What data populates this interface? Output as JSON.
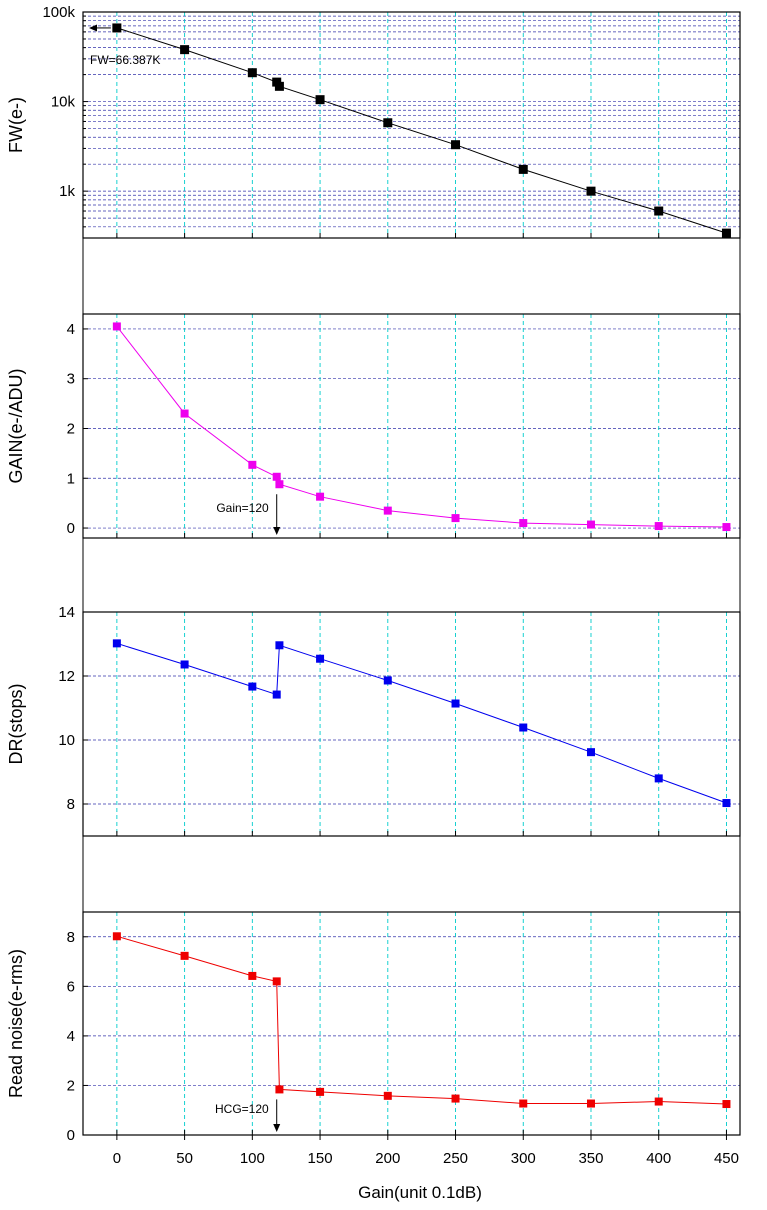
{
  "chart_data": [
    {
      "type": "line",
      "yscale": "log",
      "ylabel": "FW(e-)",
      "ylim": [
        300,
        100000
      ],
      "yticks": [
        1000,
        10000,
        100000
      ],
      "ytick_labels": [
        "1k",
        "10k",
        "100k"
      ],
      "color": "#000000",
      "series": [
        {
          "name": "FW",
          "x": [
            0,
            50,
            100,
            118,
            120,
            150,
            200,
            250,
            300,
            350,
            400,
            450
          ],
          "y": [
            66387,
            38000,
            21000,
            16500,
            14800,
            10500,
            5800,
            3300,
            1750,
            1000,
            600,
            340
          ]
        }
      ],
      "annotation": {
        "text": "FW=66.387K",
        "x": 0,
        "y": 66387
      }
    },
    {
      "type": "line",
      "ylabel": "GAIN(e-/ADU)",
      "ylim": [
        -0.2,
        4.3
      ],
      "yticks": [
        0,
        1,
        2,
        3,
        4
      ],
      "ytick_labels": [
        "0",
        "1",
        "2",
        "3",
        "4"
      ],
      "color": "#ee00ee",
      "series": [
        {
          "name": "GAIN",
          "x": [
            0,
            50,
            100,
            118,
            120,
            150,
            200,
            250,
            300,
            350,
            400,
            450
          ],
          "y": [
            4.05,
            2.3,
            1.27,
            1.03,
            0.88,
            0.63,
            0.35,
            0.2,
            0.1,
            0.07,
            0.04,
            0.02
          ]
        }
      ],
      "annotation": {
        "text": "Gain=120",
        "x": 118,
        "y": 0.88
      }
    },
    {
      "type": "line",
      "ylabel": "DR(stops)",
      "ylim": [
        7,
        14
      ],
      "yticks": [
        8,
        10,
        12,
        14
      ],
      "ytick_labels": [
        "8",
        "10",
        "12",
        "14"
      ],
      "color": "#0000ee",
      "series": [
        {
          "name": "DR",
          "x": [
            0,
            50,
            100,
            118,
            120,
            150,
            200,
            250,
            300,
            350,
            400,
            450
          ],
          "y": [
            13.02,
            12.36,
            11.67,
            11.42,
            12.96,
            12.54,
            11.86,
            11.14,
            10.39,
            9.62,
            8.8,
            8.03
          ]
        }
      ]
    },
    {
      "type": "line",
      "ylabel": "Read noise(e-rms)",
      "ylim": [
        0,
        9
      ],
      "yticks": [
        0,
        2,
        4,
        6,
        8
      ],
      "ytick_labels": [
        "0",
        "2",
        "4",
        "6",
        "8"
      ],
      "color": "#ee0000",
      "series": [
        {
          "name": "Read noise",
          "x": [
            0,
            50,
            100,
            118,
            120,
            150,
            200,
            250,
            300,
            350,
            400,
            450
          ],
          "y": [
            8.02,
            7.23,
            6.42,
            6.2,
            1.84,
            1.74,
            1.58,
            1.47,
            1.27,
            1.27,
            1.35,
            1.25
          ]
        }
      ],
      "annotation": {
        "text": "HCG=120",
        "x": 118,
        "y": 1.84
      }
    }
  ],
  "x_axis": {
    "label": "Gain(unit 0.1dB)",
    "xlim": [
      -25,
      460
    ],
    "ticks": [
      0,
      50,
      100,
      150,
      200,
      250,
      300,
      350,
      400,
      450
    ],
    "tick_labels": [
      "0",
      "50",
      "100",
      "150",
      "200",
      "250",
      "300",
      "350",
      "400",
      "450"
    ]
  },
  "colors": {
    "frame": "#000000",
    "vgrid": "#00cccc",
    "hgrid": "#3333aa",
    "background": "#ffffff"
  }
}
